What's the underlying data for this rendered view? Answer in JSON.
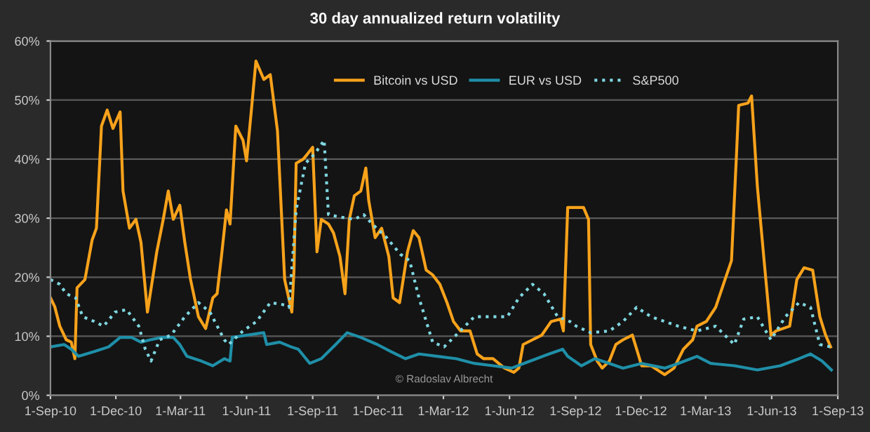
{
  "chart_data": {
    "type": "line",
    "title": "30 day annualized return volatility",
    "xlim": [
      "2010-09-01",
      "2013-09-01"
    ],
    "xticks": [
      {
        "value": "2010-09-01",
        "label": "1-Sep-10"
      },
      {
        "value": "2010-12-01",
        "label": "1-Dec-10"
      },
      {
        "value": "2011-03-01",
        "label": "1-Mar-11"
      },
      {
        "value": "2011-06-01",
        "label": "1-Jun-11"
      },
      {
        "value": "2011-09-01",
        "label": "1-Sep-11"
      },
      {
        "value": "2011-12-01",
        "label": "1-Dec-11"
      },
      {
        "value": "2012-03-01",
        "label": "1-Mar-12"
      },
      {
        "value": "2012-06-01",
        "label": "1-Jun-12"
      },
      {
        "value": "2012-09-01",
        "label": "1-Sep-12"
      },
      {
        "value": "2012-12-01",
        "label": "1-Dec-12"
      },
      {
        "value": "2013-03-01",
        "label": "1-Mar-13"
      },
      {
        "value": "2013-06-01",
        "label": "1-Jun-13"
      },
      {
        "value": "2013-09-01",
        "label": "1-Sep-13"
      }
    ],
    "ylim": [
      0,
      60
    ],
    "yticks": [
      {
        "value": 0,
        "label": "0%"
      },
      {
        "value": 10,
        "label": "10%"
      },
      {
        "value": 20,
        "label": "20%"
      },
      {
        "value": 30,
        "label": "30%"
      },
      {
        "value": 40,
        "label": "40%"
      },
      {
        "value": 50,
        "label": "50%"
      },
      {
        "value": 60,
        "label": "60%"
      }
    ],
    "grid": "y",
    "legend": "top",
    "marker": "none",
    "annotations": [
      "© Radoslav Albrecht"
    ],
    "series": [
      {
        "name": "Bitcoin vs USD",
        "color": "#f7a21b",
        "line_style": "solid",
        "x": [
          "2010-09-01",
          "2010-09-07",
          "2010-09-14",
          "2010-09-23",
          "2010-09-30",
          "2010-10-05",
          "2010-10-08",
          "2010-10-19",
          "2010-10-29",
          "2010-11-04",
          "2010-11-11",
          "2010-11-19",
          "2010-11-27",
          "2010-12-07",
          "2010-12-11",
          "2010-12-20",
          "2010-12-29",
          "2011-01-05",
          "2011-01-14",
          "2011-01-21",
          "2011-01-27",
          "2011-02-05",
          "2011-02-12",
          "2011-02-19",
          "2011-02-28",
          "2011-03-07",
          "2011-03-15",
          "2011-03-26",
          "2011-04-05",
          "2011-04-15",
          "2011-04-21",
          "2011-04-27",
          "2011-05-04",
          "2011-05-09",
          "2011-05-17",
          "2011-05-27",
          "2011-06-01",
          "2011-06-08",
          "2011-06-14",
          "2011-06-25",
          "2011-07-04",
          "2011-07-14",
          "2011-07-24",
          "2011-08-03",
          "2011-08-06",
          "2011-08-09",
          "2011-08-19",
          "2011-08-25",
          "2011-09-01",
          "2011-09-07",
          "2011-09-13",
          "2011-09-23",
          "2011-09-30",
          "2011-10-09",
          "2011-10-16",
          "2011-10-22",
          "2011-10-29",
          "2011-11-07",
          "2011-11-14",
          "2011-11-18",
          "2011-11-27",
          "2011-12-06",
          "2011-12-16",
          "2011-12-22",
          "2011-12-31",
          "2012-01-04",
          "2012-01-11",
          "2012-01-19",
          "2012-01-27",
          "2012-02-06",
          "2012-02-15",
          "2012-02-25",
          "2012-03-06",
          "2012-03-15",
          "2012-03-25",
          "2012-04-07",
          "2012-04-17",
          "2012-04-26",
          "2012-05-09",
          "2012-05-25",
          "2012-06-07",
          "2012-06-14",
          "2012-06-20",
          "2012-07-03",
          "2012-07-16",
          "2012-07-29",
          "2012-08-11",
          "2012-08-15",
          "2012-08-21",
          "2012-09-12",
          "2012-09-19",
          "2012-09-22",
          "2012-10-01",
          "2012-10-08",
          "2012-10-18",
          "2012-10-27",
          "2012-11-06",
          "2012-11-19",
          "2012-11-25",
          "2012-12-02",
          "2012-12-15",
          "2013-01-03",
          "2013-01-16",
          "2013-01-29",
          "2013-02-11",
          "2013-02-17",
          "2013-03-02",
          "2013-03-15",
          "2013-03-28",
          "2013-04-06",
          "2013-04-13",
          "2013-04-16",
          "2013-04-29",
          "2013-05-04",
          "2013-05-12",
          "2013-05-22",
          "2013-05-31",
          "2013-06-07",
          "2013-06-26",
          "2013-07-06",
          "2013-07-16",
          "2013-07-28",
          "2013-08-07",
          "2013-08-15",
          "2013-08-22"
        ],
        "values": [
          16.5,
          15,
          11.7,
          9.4,
          9,
          6.2,
          18.2,
          19.6,
          26.3,
          28.3,
          45.6,
          48.3,
          45.2,
          48,
          34.6,
          28.3,
          29.8,
          25.9,
          14.1,
          19.6,
          24.3,
          29.8,
          34.6,
          29.8,
          32.2,
          25.9,
          19.6,
          13.3,
          11.3,
          16.5,
          17.2,
          23.5,
          31.4,
          29,
          45.6,
          43.2,
          39.7,
          48.7,
          56.6,
          53.5,
          54.3,
          44.8,
          19.6,
          14.1,
          21.2,
          39.3,
          40,
          40.9,
          42,
          24.3,
          29.8,
          29,
          27.5,
          23.5,
          17.2,
          29.8,
          33.8,
          34.6,
          38.5,
          33,
          26.7,
          28.3,
          23.5,
          16.5,
          15.7,
          18.8,
          24.3,
          27.9,
          26.7,
          21.2,
          20.4,
          18.8,
          15.7,
          12.5,
          10.9,
          10.9,
          7,
          6.2,
          6.2,
          4.6,
          3.9,
          4.6,
          8.6,
          9.4,
          10.2,
          12.5,
          12.9,
          10.9,
          31.8,
          31.8,
          29.8,
          8.6,
          5.8,
          4.6,
          5.8,
          8.6,
          9.4,
          10.2,
          7.8,
          5,
          5,
          3.5,
          4.6,
          7.8,
          9.4,
          11.7,
          12.5,
          14.9,
          19.6,
          22.8,
          40.9,
          49.1,
          49.5,
          50.7,
          35.4,
          22,
          10.2,
          10.9,
          11.7,
          19.6,
          21.6,
          21.2,
          13.3,
          10.2,
          8.2
        ]
      },
      {
        "name": "EUR vs USD",
        "color": "#1f8fa8",
        "line_style": "solid",
        "x": [
          "2010-09-01",
          "2010-09-20",
          "2010-09-30",
          "2010-10-10",
          "2010-11-01",
          "2010-11-21",
          "2010-12-07",
          "2010-12-23",
          "2011-01-05",
          "2011-01-18",
          "2011-02-03",
          "2011-02-19",
          "2011-02-28",
          "2011-03-10",
          "2011-03-30",
          "2011-04-15",
          "2011-05-01",
          "2011-05-09",
          "2011-05-12",
          "2011-06-02",
          "2011-06-25",
          "2011-06-29",
          "2011-07-17",
          "2011-08-02",
          "2011-08-12",
          "2011-08-28",
          "2011-09-13",
          "2011-10-03",
          "2011-10-19",
          "2011-11-07",
          "2011-11-30",
          "2011-12-19",
          "2012-01-08",
          "2012-01-27",
          "2012-02-22",
          "2012-03-19",
          "2012-04-13",
          "2012-05-09",
          "2012-06-04",
          "2012-06-30",
          "2012-07-26",
          "2012-08-14",
          "2012-08-21",
          "2012-09-09",
          "2012-09-28",
          "2012-10-18",
          "2012-11-06",
          "2012-12-02",
          "2013-01-03",
          "2013-01-22",
          "2013-02-17",
          "2013-03-08",
          "2013-04-10",
          "2013-05-12",
          "2013-06-13",
          "2013-07-09",
          "2013-07-25",
          "2013-08-10",
          "2013-08-23"
        ],
        "values": [
          8.2,
          8.6,
          7.8,
          6.6,
          7.4,
          8.2,
          9.8,
          9.8,
          9,
          9.4,
          9.8,
          9.8,
          8.6,
          6.6,
          5.8,
          5,
          6.2,
          5.8,
          9.8,
          10.2,
          10.6,
          8.6,
          9,
          8.2,
          7.8,
          5.4,
          6.2,
          8.6,
          10.6,
          9.8,
          8.6,
          7.4,
          6.2,
          7,
          6.6,
          6.2,
          5.4,
          5,
          4.6,
          5.8,
          7,
          7.8,
          6.6,
          5,
          6.2,
          5.4,
          4.6,
          5.4,
          4.6,
          5.4,
          6.6,
          5.4,
          5,
          4.3,
          5,
          6.2,
          7,
          5.8,
          4.3
        ]
      },
      {
        "name": "S&P500",
        "color": "#7fd6e0",
        "line_style": "dotted",
        "x": [
          "2010-09-01",
          "2010-09-14",
          "2010-09-23",
          "2010-10-06",
          "2010-10-16",
          "2010-11-01",
          "2010-11-14",
          "2010-11-30",
          "2010-12-16",
          "2011-01-02",
          "2011-01-11",
          "2011-01-19",
          "2011-01-31",
          "2011-02-16",
          "2011-03-07",
          "2011-03-26",
          "2011-04-11",
          "2011-05-01",
          "2011-05-07",
          "2011-05-27",
          "2011-06-15",
          "2011-07-04",
          "2011-07-24",
          "2011-07-30",
          "2011-08-09",
          "2011-08-22",
          "2011-09-04",
          "2011-09-17",
          "2011-09-23",
          "2011-10-09",
          "2011-10-29",
          "2011-11-11",
          "2011-11-23",
          "2011-12-13",
          "2012-01-01",
          "2012-01-14",
          "2012-01-27",
          "2012-02-15",
          "2012-03-02",
          "2012-03-22",
          "2012-04-13",
          "2012-05-09",
          "2012-05-29",
          "2012-06-14",
          "2012-07-03",
          "2012-07-19",
          "2012-08-07",
          "2012-08-24",
          "2012-09-02",
          "2012-09-22",
          "2012-10-18",
          "2012-11-06",
          "2012-11-25",
          "2012-12-15",
          "2013-01-03",
          "2013-01-22",
          "2013-02-17",
          "2013-03-15",
          "2013-04-10",
          "2013-04-23",
          "2013-05-12",
          "2013-05-31",
          "2013-06-20",
          "2013-07-09",
          "2013-07-25",
          "2013-08-07",
          "2013-08-22"
        ],
        "values": [
          19.6,
          18.8,
          17.2,
          16.5,
          13.3,
          12.5,
          11.7,
          14.1,
          14.5,
          11.7,
          7.8,
          5.8,
          9.4,
          10.2,
          13.3,
          15.7,
          14.1,
          9.4,
          8.6,
          10.9,
          12.5,
          15.7,
          15.3,
          14.9,
          31.4,
          39.3,
          40.9,
          43.2,
          30.6,
          30.2,
          29.8,
          30.6,
          29,
          26.7,
          23.9,
          22.8,
          16.5,
          9,
          8.2,
          10.6,
          13.3,
          13.3,
          13.3,
          16.5,
          18.8,
          17.2,
          13.3,
          12.5,
          11.7,
          10.6,
          10.9,
          12.5,
          14.9,
          13.3,
          12.5,
          11.7,
          10.9,
          11.7,
          8.6,
          12.9,
          13.3,
          9.4,
          13.3,
          15.7,
          14.9,
          8.6,
          8.2
        ]
      }
    ]
  }
}
